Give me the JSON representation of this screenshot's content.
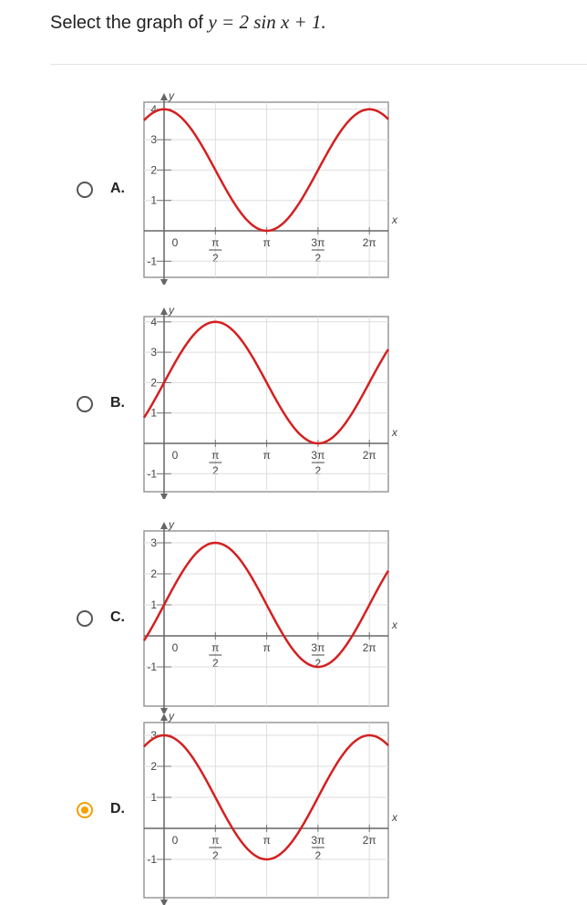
{
  "prompt": "Select the graph of",
  "equation": "y = 2 sin x + 1.",
  "axis_x": "x",
  "axis_y": "y",
  "x_tick_labels": [
    "0",
    {
      "num": "π",
      "den": "2"
    },
    "π",
    {
      "num": "3π",
      "den": "2"
    },
    "2π"
  ],
  "options": [
    {
      "letter": "A.",
      "selected": false,
      "yticks": [
        4,
        3,
        2,
        1,
        -1
      ]
    },
    {
      "letter": "B.",
      "selected": false,
      "yticks": [
        4,
        3,
        2,
        1,
        -1
      ]
    },
    {
      "letter": "C.",
      "selected": false,
      "yticks": [
        3,
        2,
        1,
        -1
      ]
    },
    {
      "letter": "D.",
      "selected": true,
      "yticks": [
        3,
        2,
        1,
        -1
      ]
    }
  ]
}
